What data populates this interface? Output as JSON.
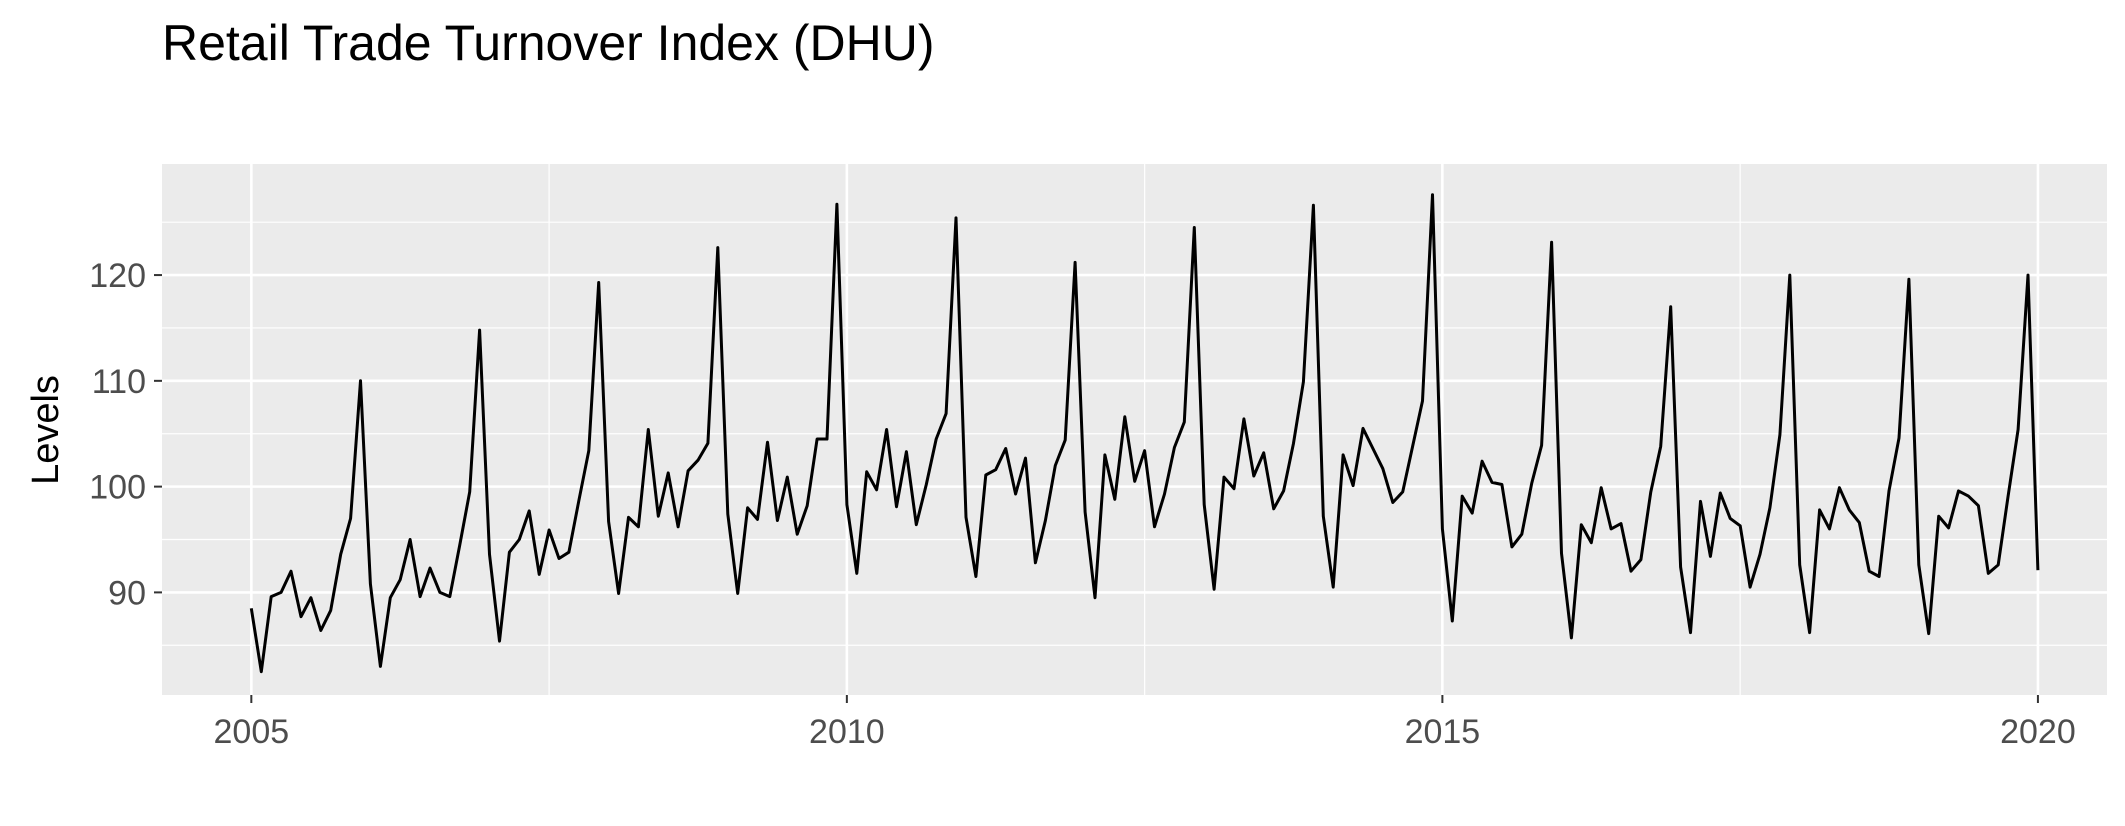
{
  "chart_data": {
    "type": "line",
    "title": "Retail Trade Turnover Index (DHU)",
    "xlabel": "",
    "ylabel": "Levels",
    "xlim": [
      2004.25,
      2020.58
    ],
    "ylim": [
      80.3,
      130.5
    ],
    "x_ticks": [
      2005,
      2010,
      2015,
      2020
    ],
    "y_ticks": [
      90,
      100,
      110,
      120
    ],
    "grid": true,
    "colors": {
      "panel": "#ebebeb",
      "grid": "#ffffff",
      "line": "#000000",
      "tick_text": "#4d4d4d"
    },
    "series": [
      {
        "start": 2005,
        "frequency": 12,
        "values": [
          88.5,
          82.5,
          89.6,
          90.0,
          92.0,
          87.7,
          89.5,
          86.4,
          88.3,
          93.6,
          97.0,
          110.0,
          90.8,
          83.0,
          89.5,
          91.2,
          95.0,
          89.6,
          92.3,
          90.0,
          89.6,
          94.5,
          99.5,
          114.8,
          93.6,
          85.4,
          93.8,
          95.0,
          97.7,
          91.7,
          95.9,
          93.2,
          93.8,
          98.7,
          103.4,
          119.3,
          96.7,
          89.9,
          97.1,
          96.2,
          105.4,
          97.2,
          101.3,
          96.2,
          101.5,
          102.5,
          104.1,
          122.6,
          97.4,
          89.9,
          98.0,
          96.9,
          104.2,
          96.8,
          100.9,
          95.5,
          98.2,
          104.5,
          104.5,
          126.7,
          98.3,
          91.8,
          101.4,
          99.7,
          105.4,
          98.1,
          103.3,
          96.4,
          100.2,
          104.5,
          106.9,
          125.4,
          97.1,
          91.5,
          101.1,
          101.6,
          103.6,
          99.3,
          102.7,
          92.8,
          96.8,
          102.0,
          104.4,
          121.2,
          97.6,
          89.5,
          103.0,
          98.8,
          106.6,
          100.5,
          103.4,
          96.2,
          99.3,
          103.7,
          106.1,
          124.5,
          98.3,
          90.3,
          100.9,
          99.8,
          106.4,
          101.0,
          103.2,
          97.9,
          99.6,
          104.1,
          109.9,
          126.6,
          97.2,
          90.5,
          103.0,
          100.1,
          105.5,
          103.6,
          101.7,
          98.5,
          99.5,
          103.8,
          108.1,
          127.6,
          96.0,
          87.3,
          99.1,
          97.5,
          102.4,
          100.4,
          100.2,
          94.3,
          95.5,
          100.3,
          103.9,
          123.1,
          93.7,
          85.7,
          96.4,
          94.7,
          99.9,
          96.0,
          96.5,
          92.0,
          93.1,
          99.5,
          103.8,
          117.0,
          92.4,
          86.2,
          98.6,
          93.4,
          99.4,
          97.0,
          96.3,
          90.5,
          93.6,
          98.0,
          104.9,
          120.0,
          92.6,
          86.2,
          97.8,
          96.0,
          99.9,
          97.8,
          96.6,
          92.0,
          91.5,
          99.6,
          104.6,
          119.6,
          92.6,
          86.1,
          97.2,
          96.1,
          99.6,
          99.1,
          98.2,
          91.8,
          92.6,
          99.1,
          105.4,
          120.0,
          92.1
        ]
      }
    ]
  }
}
